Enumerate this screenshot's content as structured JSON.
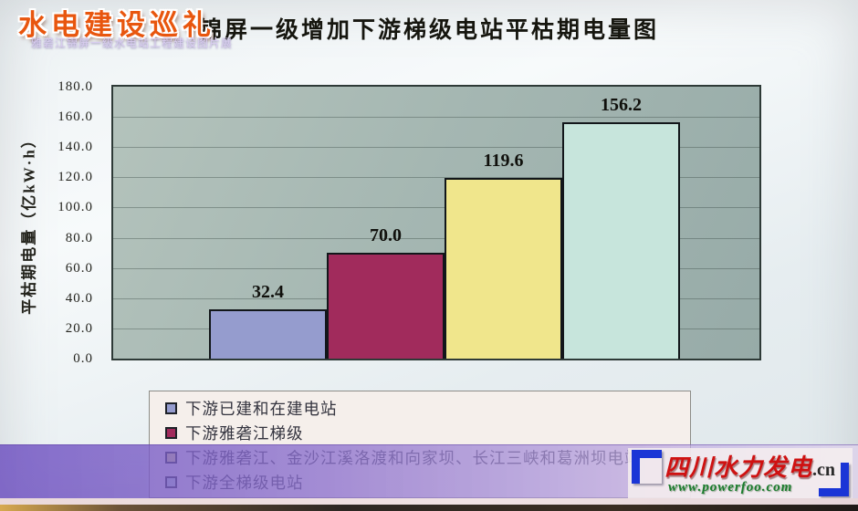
{
  "slide": {
    "title": "锦屏一级增加下游梯级电站平枯期电量图"
  },
  "chart_data": {
    "type": "bar",
    "title": "锦屏一级增加下游梯级电站平枯期电量图",
    "xlabel": "",
    "ylabel": "平枯期电量（亿kW·h）",
    "ylim": [
      0,
      180
    ],
    "ytick_step": 20,
    "ytick_labels": [
      "180.0",
      "160.0",
      "140.0",
      "120.0",
      "100.0",
      "80.0",
      "60.0",
      "40.0",
      "20.0",
      "0.0"
    ],
    "grid": true,
    "legend_position": "bottom",
    "plot_bg": "#a5b7b2",
    "series": [
      {
        "name": "下游已建和在建电站",
        "value": 32.4,
        "label": "32.4",
        "color": "#959cce"
      },
      {
        "name": "下游雅砻江梯级",
        "value": 70.0,
        "label": "70.0",
        "color": "#a12b5c"
      },
      {
        "name": "下游雅砻江、金沙江溪洛渡和向家坝、长江三峡和葛洲坝电站",
        "value": 119.6,
        "label": "119.6",
        "color": "#f0e68c"
      },
      {
        "name": "下游全梯级电站",
        "value": 156.2,
        "label": "156.2",
        "color": "#c7e5dc"
      }
    ]
  },
  "branding": {
    "left_title": "水电建设巡礼",
    "left_subtitle": "雅砻江锦屏一级水电站工程建设图片展",
    "right_site_name": "四川水力发电",
    "right_site_tld": ".cn",
    "right_url": "www.powerfoo.com"
  }
}
